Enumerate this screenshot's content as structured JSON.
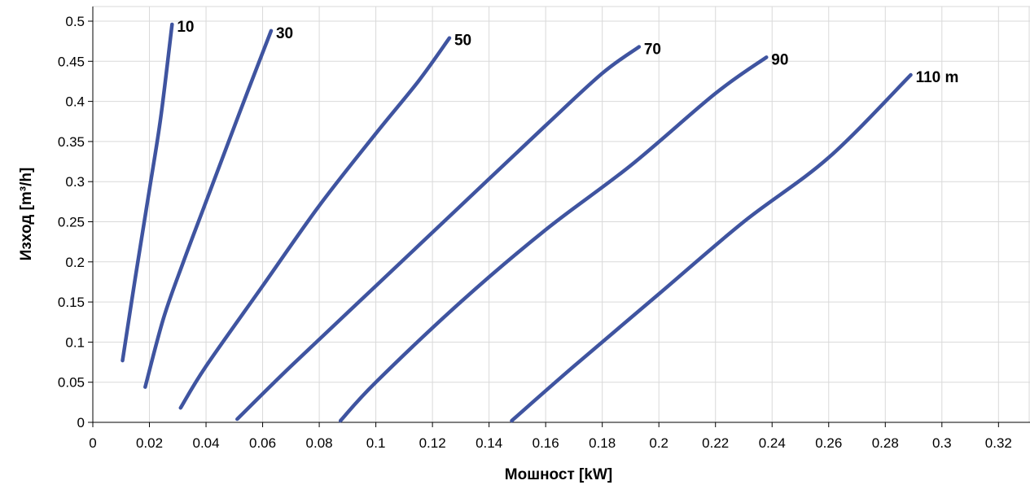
{
  "chart_data": {
    "type": "line",
    "title": "",
    "xlabel": "Мошност [kW]",
    "ylabel": "Изход  [m³/h]",
    "xlim": [
      0,
      0.33
    ],
    "ylim": [
      0,
      0.51
    ],
    "x_ticks": [
      "0",
      "0.02",
      "0.04",
      "0.06",
      "0.08",
      "0.1",
      "0.12",
      "0.14",
      "0.16",
      "0.18",
      "0.2",
      "0.22",
      "0.24",
      "0.26",
      "0.28",
      "0.3",
      "0.32"
    ],
    "y_ticks": [
      "0",
      "0.05",
      "0.1",
      "0.15",
      "0.2",
      "0.25",
      "0.3",
      "0.35",
      "0.4",
      "0.45",
      "0.5"
    ],
    "grid": true,
    "line_color": "#3f54a0",
    "series": [
      {
        "name": "10",
        "label": "10",
        "points": [
          [
            0.0105,
            0.077
          ],
          [
            0.015,
            0.18
          ],
          [
            0.02,
            0.29
          ],
          [
            0.024,
            0.38
          ],
          [
            0.028,
            0.496
          ]
        ]
      },
      {
        "name": "30",
        "label": "30",
        "points": [
          [
            0.0185,
            0.044
          ],
          [
            0.025,
            0.13
          ],
          [
            0.032,
            0.2
          ],
          [
            0.04,
            0.275
          ],
          [
            0.048,
            0.35
          ],
          [
            0.055,
            0.415
          ],
          [
            0.063,
            0.488
          ]
        ]
      },
      {
        "name": "50",
        "label": "50",
        "points": [
          [
            0.031,
            0.018
          ],
          [
            0.04,
            0.07
          ],
          [
            0.06,
            0.17
          ],
          [
            0.08,
            0.27
          ],
          [
            0.1,
            0.36
          ],
          [
            0.115,
            0.425
          ],
          [
            0.126,
            0.479
          ]
        ]
      },
      {
        "name": "70",
        "label": "70",
        "points": [
          [
            0.051,
            0.004
          ],
          [
            0.07,
            0.07
          ],
          [
            0.1,
            0.17
          ],
          [
            0.13,
            0.27
          ],
          [
            0.16,
            0.37
          ],
          [
            0.18,
            0.435
          ],
          [
            0.193,
            0.468
          ]
        ]
      },
      {
        "name": "90",
        "label": "90",
        "points": [
          [
            0.0875,
            0.002
          ],
          [
            0.1,
            0.05
          ],
          [
            0.13,
            0.15
          ],
          [
            0.16,
            0.24
          ],
          [
            0.19,
            0.32
          ],
          [
            0.22,
            0.41
          ],
          [
            0.238,
            0.455
          ]
        ]
      },
      {
        "name": "110 m",
        "label": "110 m",
        "points": [
          [
            0.148,
            0.002
          ],
          [
            0.17,
            0.07
          ],
          [
            0.2,
            0.16
          ],
          [
            0.23,
            0.25
          ],
          [
            0.26,
            0.33
          ],
          [
            0.289,
            0.433
          ]
        ]
      }
    ]
  }
}
